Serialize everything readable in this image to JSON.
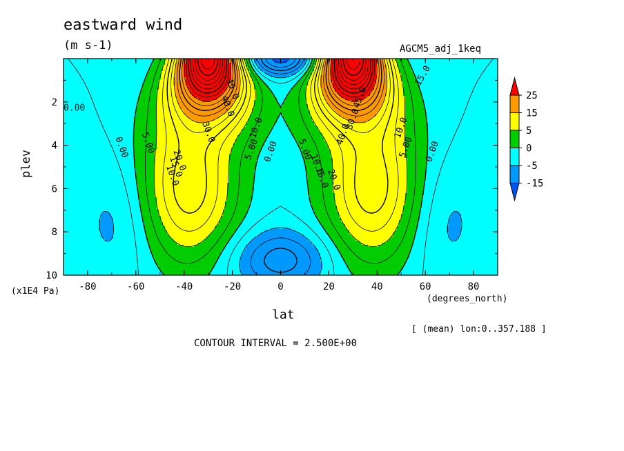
{
  "chart_data": {
    "type": "contour",
    "title": "eastward wind",
    "units": "(m s-1)",
    "run": "AGCM5_adj_1keq",
    "xlabel": "lat",
    "xunits": "(degrees_north)",
    "ylabel": "plev",
    "yunits": "(x1E4 Pa)",
    "mean_note": "[ (mean) lon:0..357.188 ]",
    "contour_interval": "CONTOUR INTERVAL = 2.500E+00",
    "xlim": [
      -90,
      90
    ],
    "ylim": [
      10,
      0
    ],
    "x_ticks": [
      "-80",
      "-60",
      "-40",
      "-20",
      "0",
      "20",
      "40",
      "60",
      "80"
    ],
    "y_ticks": [
      "2",
      "4",
      "6",
      "8",
      "10"
    ],
    "colorbar": {
      "levels": [
        "25",
        "15",
        "5",
        "0",
        "-5",
        "-15"
      ],
      "colors": [
        "#ff0000",
        "#ff9900",
        "#ffff00",
        "#00cc00",
        "#00ffff",
        "#0099ff",
        "#0055ee"
      ]
    },
    "contour_labels": [
      "0.00",
      "0.00",
      "5.00",
      "10.0",
      "15.0",
      "20.0",
      "30.0",
      "40.0",
      "45.0",
      "10.0",
      "5.00",
      "0.00",
      "5.00",
      "10.0",
      "15.0",
      "20.0",
      "40.0",
      "45.0",
      "30.0",
      "10.0",
      "5.00",
      "0.00",
      "15.0"
    ],
    "features": {
      "westerly_jets": [
        {
          "lat": -30,
          "plev": 0.8,
          "max": 45
        },
        {
          "lat": 30,
          "plev": 0.8,
          "max": 45
        }
      ],
      "easterly_top_equator": {
        "lat": 0,
        "plev": 0.5,
        "min": -15
      },
      "easterly_surface_equator": {
        "lat": 0,
        "plev": 9.2,
        "min": -10
      }
    }
  }
}
